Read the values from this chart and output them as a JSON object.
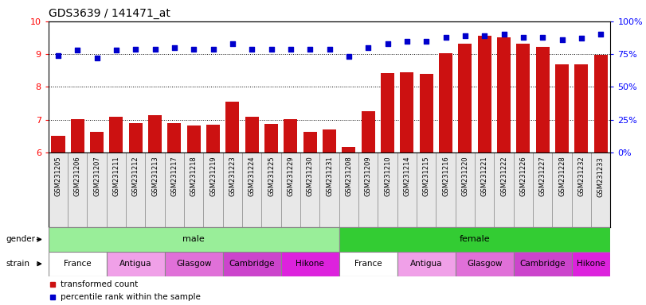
{
  "title": "GDS3639 / 141471_at",
  "samples": [
    "GSM231205",
    "GSM231206",
    "GSM231207",
    "GSM231211",
    "GSM231212",
    "GSM231213",
    "GSM231217",
    "GSM231218",
    "GSM231219",
    "GSM231223",
    "GSM231224",
    "GSM231225",
    "GSM231229",
    "GSM231230",
    "GSM231231",
    "GSM231208",
    "GSM231209",
    "GSM231210",
    "GSM231214",
    "GSM231215",
    "GSM231216",
    "GSM231220",
    "GSM231221",
    "GSM231222",
    "GSM231226",
    "GSM231227",
    "GSM231228",
    "GSM231232",
    "GSM231233"
  ],
  "bar_values": [
    6.52,
    7.01,
    6.62,
    7.1,
    6.9,
    7.13,
    6.9,
    6.82,
    6.85,
    7.55,
    7.08,
    6.88,
    7.02,
    6.62,
    6.71,
    6.18,
    7.26,
    8.42,
    8.45,
    8.4,
    9.02,
    9.33,
    9.55,
    9.52,
    9.31,
    9.22,
    8.68,
    8.68,
    8.98
  ],
  "percentile_values": [
    74,
    78,
    72,
    78,
    79,
    79,
    80,
    79,
    79,
    83,
    79,
    79,
    79,
    79,
    79,
    73,
    80,
    83,
    85,
    85,
    88,
    89,
    89,
    90,
    88,
    88,
    86,
    87,
    90
  ],
  "gender": [
    "male",
    "male",
    "male",
    "male",
    "male",
    "male",
    "male",
    "male",
    "male",
    "male",
    "male",
    "male",
    "male",
    "male",
    "male",
    "female",
    "female",
    "female",
    "female",
    "female",
    "female",
    "female",
    "female",
    "female",
    "female",
    "female",
    "female",
    "female",
    "female"
  ],
  "strain": [
    "France",
    "France",
    "France",
    "Antigua",
    "Antigua",
    "Antigua",
    "Glasgow",
    "Glasgow",
    "Glasgow",
    "Cambridge",
    "Cambridge",
    "Cambridge",
    "Hikone",
    "Hikone",
    "Hikone",
    "France",
    "France",
    "France",
    "Antigua",
    "Antigua",
    "Antigua",
    "Glasgow",
    "Glasgow",
    "Glasgow",
    "Cambridge",
    "Cambridge",
    "Cambridge",
    "Hikone",
    "Hikone"
  ],
  "strain_colors": {
    "France": "#ffffff",
    "Antigua": "#f0a0e8",
    "Glasgow": "#e070d8",
    "Cambridge": "#cc44cc",
    "Hikone": "#dd22dd"
  },
  "gender_colors": {
    "male": "#99ee99",
    "female": "#33cc33"
  },
  "bar_color": "#cc1111",
  "percentile_color": "#0000cc",
  "ymin": 6,
  "ymax": 10,
  "pmin": 0,
  "pmax": 100,
  "yticks": [
    6,
    7,
    8,
    9,
    10
  ],
  "pticks": [
    0,
    25,
    50,
    75,
    100
  ],
  "legend_bar": "transformed count",
  "legend_pct": "percentile rank within the sample",
  "bar_width": 0.7,
  "bar_baseline": 6.0
}
